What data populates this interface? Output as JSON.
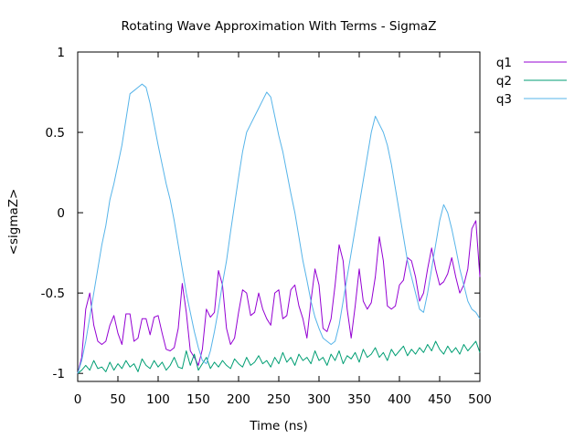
{
  "chart_data": {
    "type": "line",
    "title": "Rotating Wave Approximation With Terms - SigmaZ",
    "xlabel": "Time (ns)",
    "ylabel": "<sigmaZ>",
    "xlim": [
      0,
      500
    ],
    "ylim": [
      -1.05,
      1
    ],
    "x_ticks": [
      "0",
      "50",
      "100",
      "150",
      "200",
      "250",
      "300",
      "350",
      "400",
      "450",
      "500"
    ],
    "y_ticks": [
      "1",
      "0.5",
      "0",
      "-0.5",
      "-1"
    ],
    "legend_position": "outside-top-right",
    "grid": false,
    "series": [
      {
        "name": "q1",
        "color": "#9400d3",
        "x": [
          0,
          5,
          10,
          15,
          20,
          25,
          30,
          35,
          40,
          45,
          50,
          55,
          60,
          65,
          70,
          75,
          80,
          85,
          90,
          95,
          100,
          105,
          110,
          115,
          120,
          125,
          130,
          135,
          140,
          145,
          150,
          155,
          160,
          165,
          170,
          175,
          180,
          185,
          190,
          195,
          200,
          205,
          210,
          215,
          220,
          225,
          230,
          235,
          240,
          245,
          250,
          255,
          260,
          265,
          270,
          275,
          280,
          285,
          290,
          295,
          300,
          305,
          310,
          315,
          320,
          325,
          330,
          335,
          340,
          345,
          350,
          355,
          360,
          365,
          370,
          375,
          380,
          385,
          390,
          395,
          400,
          405,
          410,
          415,
          420,
          425,
          430,
          435,
          440,
          445,
          450,
          455,
          460,
          465,
          470,
          475,
          480,
          485,
          490,
          495,
          500
        ],
        "values": [
          -1.0,
          -0.9,
          -0.6,
          -0.5,
          -0.7,
          -0.8,
          -0.82,
          -0.8,
          -0.7,
          -0.64,
          -0.75,
          -0.82,
          -0.63,
          -0.63,
          -0.8,
          -0.78,
          -0.66,
          -0.66,
          -0.76,
          -0.65,
          -0.64,
          -0.75,
          -0.85,
          -0.86,
          -0.84,
          -0.72,
          -0.44,
          -0.62,
          -0.86,
          -0.9,
          -0.95,
          -0.85,
          -0.6,
          -0.65,
          -0.62,
          -0.36,
          -0.45,
          -0.72,
          -0.82,
          -0.78,
          -0.62,
          -0.48,
          -0.5,
          -0.64,
          -0.62,
          -0.5,
          -0.6,
          -0.66,
          -0.7,
          -0.5,
          -0.48,
          -0.66,
          -0.64,
          -0.48,
          -0.45,
          -0.58,
          -0.66,
          -0.78,
          -0.55,
          -0.35,
          -0.45,
          -0.72,
          -0.74,
          -0.66,
          -0.45,
          -0.2,
          -0.3,
          -0.6,
          -0.78,
          -0.58,
          -0.35,
          -0.55,
          -0.6,
          -0.56,
          -0.4,
          -0.15,
          -0.3,
          -0.58,
          -0.6,
          -0.58,
          -0.45,
          -0.42,
          -0.28,
          -0.3,
          -0.4,
          -0.55,
          -0.5,
          -0.35,
          -0.22,
          -0.35,
          -0.45,
          -0.43,
          -0.38,
          -0.28,
          -0.4,
          -0.5,
          -0.45,
          -0.35,
          -0.1,
          -0.05,
          -0.4
        ]
      },
      {
        "name": "q2",
        "color": "#009e73",
        "x": [
          0,
          5,
          10,
          15,
          20,
          25,
          30,
          35,
          40,
          45,
          50,
          55,
          60,
          65,
          70,
          75,
          80,
          85,
          90,
          95,
          100,
          105,
          110,
          115,
          120,
          125,
          130,
          135,
          140,
          145,
          150,
          155,
          160,
          165,
          170,
          175,
          180,
          185,
          190,
          195,
          200,
          205,
          210,
          215,
          220,
          225,
          230,
          235,
          240,
          245,
          250,
          255,
          260,
          265,
          270,
          275,
          280,
          285,
          290,
          295,
          300,
          305,
          310,
          315,
          320,
          325,
          330,
          335,
          340,
          345,
          350,
          355,
          360,
          365,
          370,
          375,
          380,
          385,
          390,
          395,
          400,
          405,
          410,
          415,
          420,
          425,
          430,
          435,
          440,
          445,
          450,
          455,
          460,
          465,
          470,
          475,
          480,
          485,
          490,
          495,
          500
        ],
        "values": [
          -1.0,
          -0.98,
          -0.95,
          -0.98,
          -0.92,
          -0.97,
          -0.96,
          -0.99,
          -0.93,
          -0.98,
          -0.94,
          -0.97,
          -0.92,
          -0.96,
          -0.94,
          -0.99,
          -0.91,
          -0.95,
          -0.97,
          -0.92,
          -0.96,
          -0.93,
          -0.98,
          -0.95,
          -0.9,
          -0.96,
          -0.97,
          -0.86,
          -0.95,
          -0.88,
          -0.98,
          -0.94,
          -0.9,
          -0.97,
          -0.93,
          -0.96,
          -0.92,
          -0.95,
          -0.97,
          -0.91,
          -0.94,
          -0.96,
          -0.9,
          -0.95,
          -0.93,
          -0.89,
          -0.94,
          -0.92,
          -0.96,
          -0.9,
          -0.94,
          -0.87,
          -0.93,
          -0.9,
          -0.95,
          -0.88,
          -0.92,
          -0.9,
          -0.94,
          -0.86,
          -0.92,
          -0.9,
          -0.95,
          -0.88,
          -0.92,
          -0.86,
          -0.94,
          -0.89,
          -0.91,
          -0.87,
          -0.93,
          -0.85,
          -0.9,
          -0.88,
          -0.84,
          -0.9,
          -0.87,
          -0.92,
          -0.85,
          -0.89,
          -0.86,
          -0.83,
          -0.89,
          -0.85,
          -0.88,
          -0.84,
          -0.87,
          -0.82,
          -0.86,
          -0.8,
          -0.85,
          -0.88,
          -0.83,
          -0.87,
          -0.84,
          -0.88,
          -0.82,
          -0.86,
          -0.83,
          -0.8,
          -0.87
        ]
      },
      {
        "name": "q3",
        "color": "#56b4e9",
        "x": [
          0,
          5,
          10,
          15,
          20,
          25,
          30,
          35,
          40,
          45,
          50,
          55,
          60,
          65,
          70,
          75,
          80,
          85,
          90,
          95,
          100,
          105,
          110,
          115,
          120,
          125,
          130,
          135,
          140,
          145,
          150,
          155,
          160,
          165,
          170,
          175,
          180,
          185,
          190,
          195,
          200,
          205,
          210,
          215,
          220,
          225,
          230,
          235,
          240,
          245,
          250,
          255,
          260,
          265,
          270,
          275,
          280,
          285,
          290,
          295,
          300,
          305,
          310,
          315,
          320,
          325,
          330,
          335,
          340,
          345,
          350,
          355,
          360,
          365,
          370,
          375,
          380,
          385,
          390,
          395,
          400,
          405,
          410,
          415,
          420,
          425,
          430,
          435,
          440,
          445,
          450,
          455,
          460,
          465,
          470,
          475,
          480,
          485,
          490,
          495,
          500
        ],
        "values": [
          -1.0,
          -0.92,
          -0.8,
          -0.65,
          -0.5,
          -0.35,
          -0.2,
          -0.08,
          0.08,
          0.18,
          0.3,
          0.42,
          0.58,
          0.74,
          0.76,
          0.78,
          0.8,
          0.78,
          0.68,
          0.55,
          0.42,
          0.3,
          0.18,
          0.08,
          -0.05,
          -0.2,
          -0.35,
          -0.5,
          -0.62,
          -0.74,
          -0.84,
          -0.92,
          -0.94,
          -0.86,
          -0.74,
          -0.6,
          -0.44,
          -0.3,
          -0.12,
          0.05,
          0.22,
          0.38,
          0.5,
          0.55,
          0.6,
          0.65,
          0.7,
          0.75,
          0.72,
          0.6,
          0.48,
          0.38,
          0.25,
          0.12,
          0.0,
          -0.15,
          -0.3,
          -0.42,
          -0.55,
          -0.65,
          -0.72,
          -0.78,
          -0.8,
          -0.82,
          -0.8,
          -0.7,
          -0.55,
          -0.4,
          -0.25,
          -0.1,
          0.05,
          0.2,
          0.35,
          0.5,
          0.6,
          0.55,
          0.5,
          0.42,
          0.3,
          0.15,
          0.0,
          -0.15,
          -0.3,
          -0.4,
          -0.5,
          -0.6,
          -0.62,
          -0.5,
          -0.35,
          -0.2,
          -0.05,
          0.05,
          0.0,
          -0.1,
          -0.22,
          -0.35,
          -0.45,
          -0.55,
          -0.6,
          -0.62,
          -0.66
        ]
      }
    ]
  }
}
